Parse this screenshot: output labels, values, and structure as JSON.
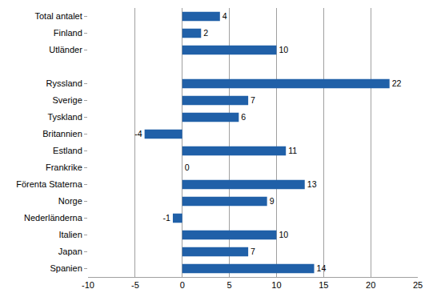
{
  "chart_data": {
    "type": "bar",
    "orientation": "horizontal",
    "categories": [
      "Total antalet",
      "Finland",
      "Utländer",
      null,
      "Ryssland",
      "Sverige",
      "Tyskland",
      "Britannien",
      "Estland",
      "Frankrike",
      "Förenta Staterna",
      "Norge",
      "Nederländerna",
      "Italien",
      "Japan",
      "Spanien"
    ],
    "values": [
      4,
      2,
      10,
      null,
      22,
      7,
      6,
      -4,
      11,
      0,
      13,
      9,
      -1,
      10,
      7,
      14
    ],
    "color": "#2060a8",
    "xlim": [
      -10,
      25
    ],
    "xticks": [
      -10,
      -5,
      0,
      5,
      10,
      15,
      20,
      25
    ],
    "grid": true,
    "data_labels": true
  }
}
